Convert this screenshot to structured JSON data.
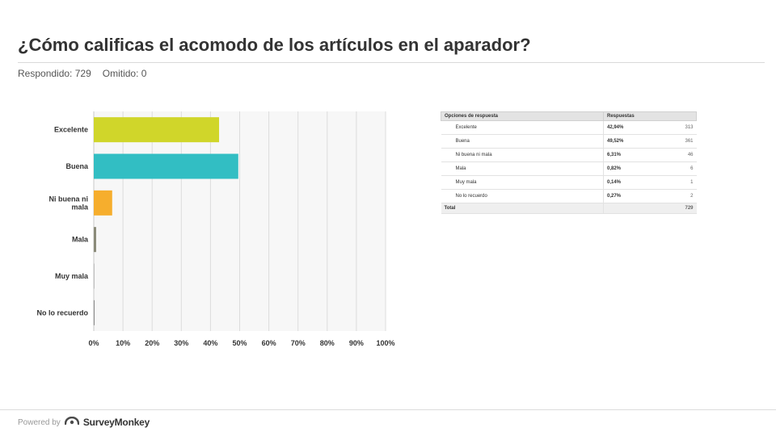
{
  "header": {
    "title": "¿Cómo calificas el acomodo de los artículos en el aparador?",
    "answered": "Respondido: 729",
    "skipped": "Omitido: 0"
  },
  "chart_data": {
    "type": "bar",
    "orientation": "horizontal",
    "categories": [
      "Excelente",
      "Buena",
      "Ni buena ni mala",
      "Mala",
      "Muy mala",
      "No lo recuerdo"
    ],
    "category_lines": [
      [
        "Excelente"
      ],
      [
        "Buena"
      ],
      [
        "Ni buena ni",
        "mala"
      ],
      [
        "Mala"
      ],
      [
        "Muy mala"
      ],
      [
        "No lo recuerdo"
      ]
    ],
    "values": [
      42.94,
      49.52,
      6.31,
      0.82,
      0.14,
      0.27
    ],
    "colors": [
      "#d0d62a",
      "#32bec3",
      "#f6ae2d",
      "#8a8a78",
      "#888888",
      "#888888"
    ],
    "xlim": [
      0,
      100
    ],
    "tick_labels": [
      "0%",
      "10%",
      "20%",
      "30%",
      "40%",
      "50%",
      "60%",
      "70%",
      "80%",
      "90%",
      "100%"
    ],
    "grid": true,
    "title": "",
    "xlabel": "",
    "ylabel": ""
  },
  "table": {
    "header_option": "Opciones de respuesta",
    "header_responses": "Respuestas",
    "rows": [
      {
        "option": "Excelente",
        "percent": "42,94%",
        "count": "313"
      },
      {
        "option": "Buena",
        "percent": "49,52%",
        "count": "361"
      },
      {
        "option": "Ni buena ni mala",
        "percent": "6,31%",
        "count": "46"
      },
      {
        "option": "Mala",
        "percent": "0,82%",
        "count": "6"
      },
      {
        "option": "Muy mala",
        "percent": "0,14%",
        "count": "1"
      },
      {
        "option": "No lo recuerdo",
        "percent": "0,27%",
        "count": "2"
      }
    ],
    "total_label": "Total",
    "total_value": "729"
  },
  "footer": {
    "powered_by": "Powered by",
    "brand": "SurveyMonkey"
  },
  "icons": {
    "brand_logo": "surveymonkey-logo-icon"
  }
}
